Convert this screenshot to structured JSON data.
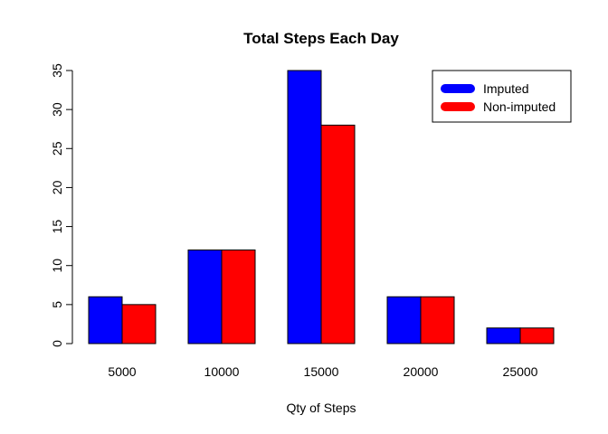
{
  "chart_data": {
    "type": "bar",
    "title": "Total Steps Each Day",
    "xlabel": "Qty of Steps",
    "ylabel": "",
    "categories": [
      "5000",
      "10000",
      "15000",
      "20000",
      "25000"
    ],
    "series": [
      {
        "name": "Imputed",
        "color": "#0000ff",
        "values": [
          6,
          12,
          35,
          6,
          2
        ]
      },
      {
        "name": "Non-imputed",
        "color": "#ff0000",
        "values": [
          5,
          12,
          28,
          6,
          2
        ]
      }
    ],
    "ylim": [
      0,
      35
    ],
    "yticks": [
      0,
      5,
      10,
      15,
      20,
      25,
      30,
      35
    ],
    "grid": false,
    "legend_position": "top-right"
  }
}
